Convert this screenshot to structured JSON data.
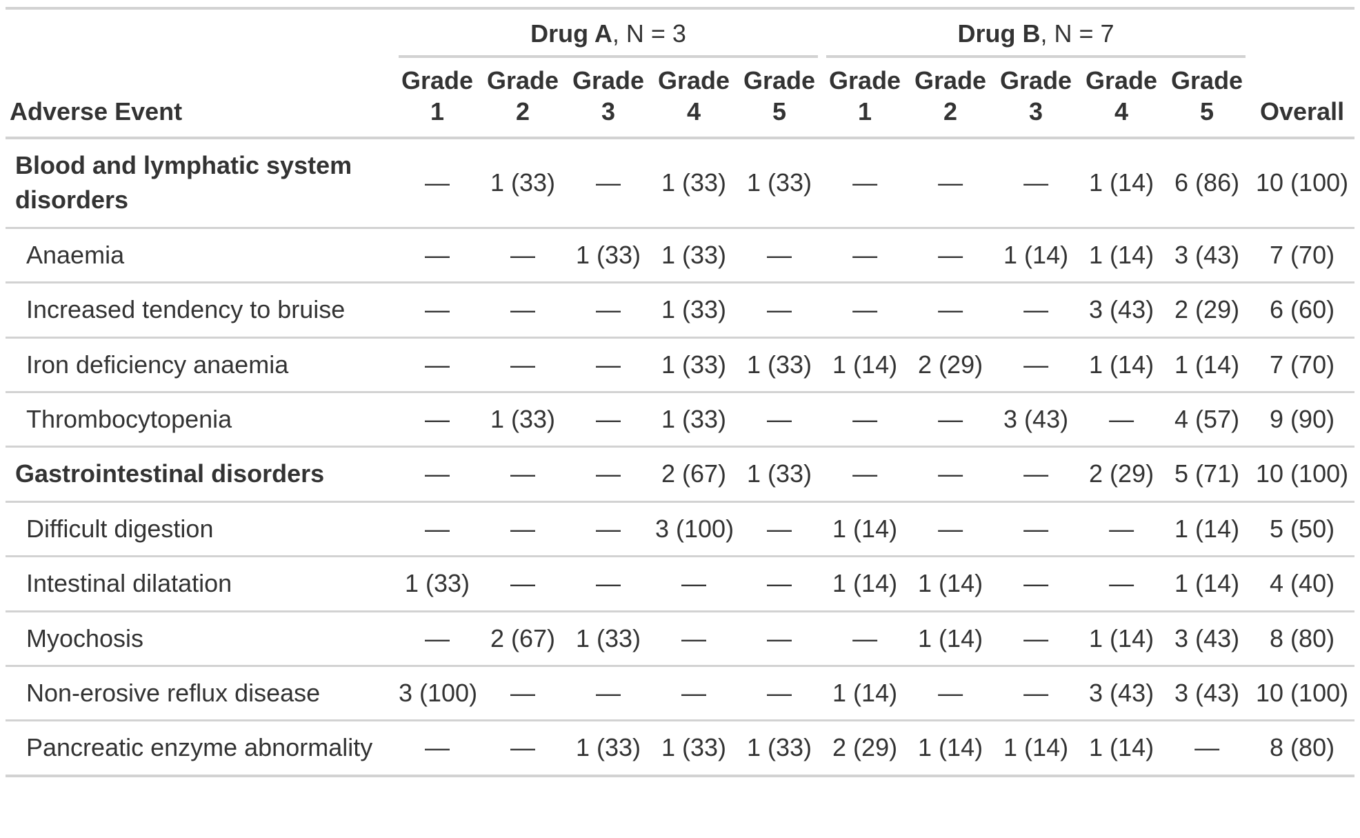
{
  "colors": {
    "text": "#333333",
    "border": "#D2D2D2",
    "background": "#FFFFFF"
  },
  "chart_data": {
    "type": "table",
    "stub_header": "Adverse Event",
    "overall_header": "Overall",
    "grade_word": "Grade",
    "grade_numbers": [
      "1",
      "2",
      "3",
      "4",
      "5"
    ],
    "spanners": [
      {
        "name": "Drug A",
        "suffix": ", N = 3"
      },
      {
        "name": "Drug B",
        "suffix": ", N = 7"
      }
    ],
    "empty_cell": "—",
    "columns_per_group": 5,
    "rows": [
      {
        "label": "Blood and lymphatic system disorders",
        "is_group": true,
        "values": [
          "—",
          "1 (33)",
          "—",
          "1 (33)",
          "1 (33)",
          "—",
          "—",
          "—",
          "1 (14)",
          "6 (86)",
          "10 (100)"
        ]
      },
      {
        "label": "Anaemia",
        "is_group": false,
        "values": [
          "—",
          "—",
          "1 (33)",
          "1 (33)",
          "—",
          "—",
          "—",
          "1 (14)",
          "1 (14)",
          "3 (43)",
          "7 (70)"
        ]
      },
      {
        "label": "Increased tendency to bruise",
        "is_group": false,
        "values": [
          "—",
          "—",
          "—",
          "1 (33)",
          "—",
          "—",
          "—",
          "—",
          "3 (43)",
          "2 (29)",
          "6 (60)"
        ]
      },
      {
        "label": "Iron deficiency anaemia",
        "is_group": false,
        "values": [
          "—",
          "—",
          "—",
          "1 (33)",
          "1 (33)",
          "1 (14)",
          "2 (29)",
          "—",
          "1 (14)",
          "1 (14)",
          "7 (70)"
        ]
      },
      {
        "label": "Thrombocytopenia",
        "is_group": false,
        "values": [
          "—",
          "1 (33)",
          "—",
          "1 (33)",
          "—",
          "—",
          "—",
          "3 (43)",
          "—",
          "4 (57)",
          "9 (90)"
        ]
      },
      {
        "label": "Gastrointestinal disorders",
        "is_group": true,
        "values": [
          "—",
          "—",
          "—",
          "2 (67)",
          "1 (33)",
          "—",
          "—",
          "—",
          "2 (29)",
          "5 (71)",
          "10 (100)"
        ]
      },
      {
        "label": "Difficult digestion",
        "is_group": false,
        "values": [
          "—",
          "—",
          "—",
          "3 (100)",
          "—",
          "1 (14)",
          "—",
          "—",
          "—",
          "1 (14)",
          "5 (50)"
        ]
      },
      {
        "label": "Intestinal dilatation",
        "is_group": false,
        "values": [
          "1 (33)",
          "—",
          "—",
          "—",
          "—",
          "1 (14)",
          "1 (14)",
          "—",
          "—",
          "1 (14)",
          "4 (40)"
        ]
      },
      {
        "label": "Myochosis",
        "is_group": false,
        "values": [
          "—",
          "2 (67)",
          "1 (33)",
          "—",
          "—",
          "—",
          "1 (14)",
          "—",
          "1 (14)",
          "3 (43)",
          "8 (80)"
        ]
      },
      {
        "label": "Non-erosive reflux disease",
        "is_group": false,
        "values": [
          "3 (100)",
          "—",
          "—",
          "—",
          "—",
          "1 (14)",
          "—",
          "—",
          "3 (43)",
          "3 (43)",
          "10 (100)"
        ]
      },
      {
        "label": "Pancreatic enzyme abnormality",
        "is_group": false,
        "values": [
          "—",
          "—",
          "1 (33)",
          "1 (33)",
          "1 (33)",
          "2 (29)",
          "1 (14)",
          "1 (14)",
          "1 (14)",
          "—",
          "8 (80)"
        ]
      }
    ]
  }
}
